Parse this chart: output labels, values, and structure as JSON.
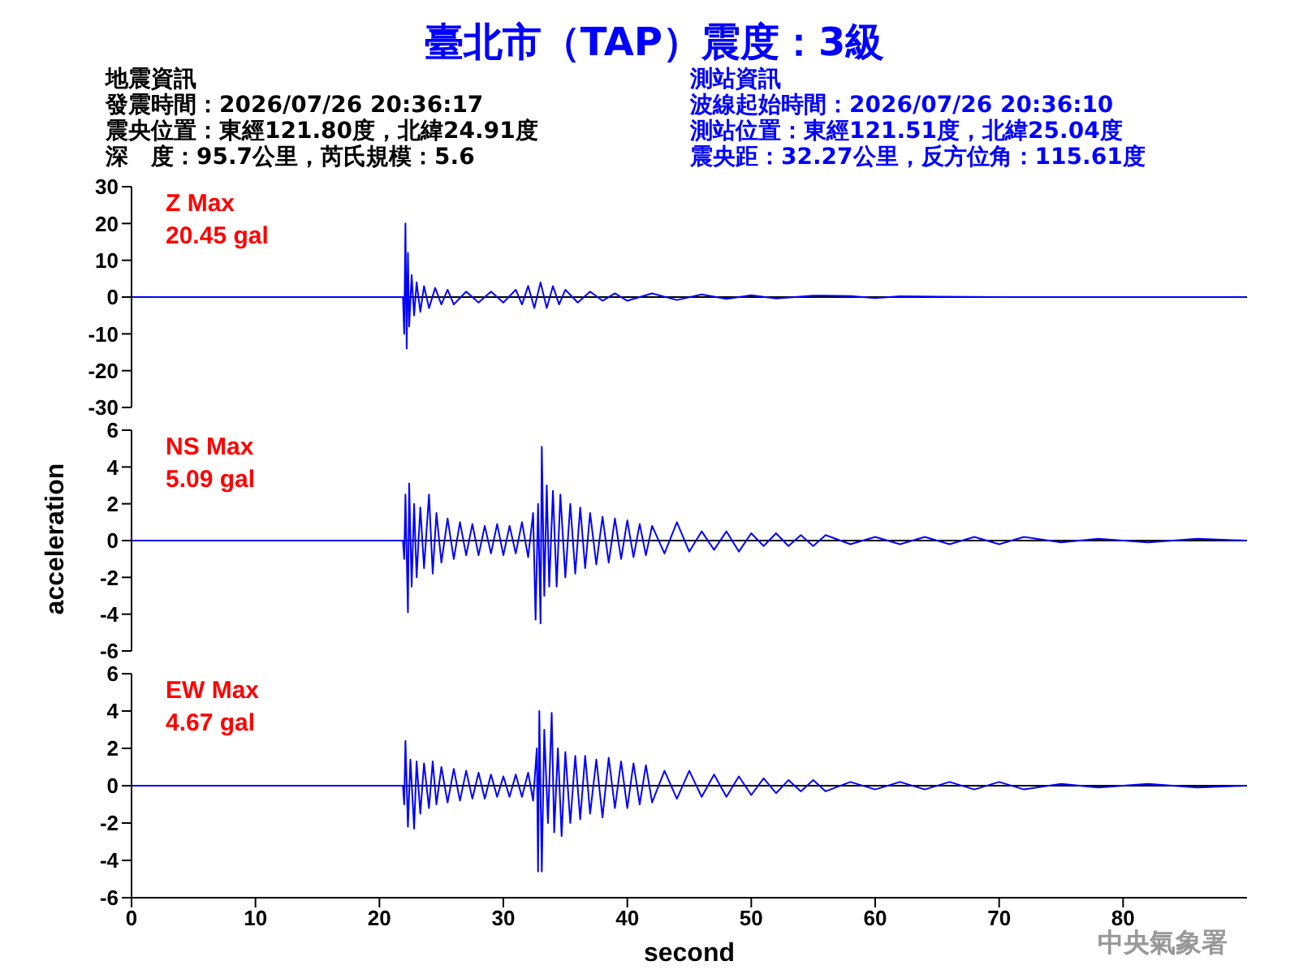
{
  "chart_data": [
    {
      "type": "line",
      "title": "臺北市（TAP）震度：3級",
      "xlim": [
        0,
        90
      ],
      "ylim": [
        -30,
        30
      ],
      "yticks": [
        -30,
        -20,
        -10,
        0,
        10,
        20,
        30
      ],
      "tick_labels": "y",
      "grid": false,
      "legend": false,
      "marker": "none",
      "ref_lines": [
        {
          "axis": "y",
          "value": 0,
          "color": "#000000"
        }
      ],
      "annotations": [
        "Z Max",
        "20.45 gal",
        "地震資訊",
        "發震時間：2026/07/26 20:36:17",
        "震央位置：東經121.80度，北緯24.91度",
        "深　度：95.7公里，芮氏規模：5.6",
        "測站資訊",
        "波線起始時間：2026/07/26 20:36:10",
        "測站位置：東經121.51度，北緯25.04度",
        "震央距：32.27公里，反方位角：115.61度"
      ],
      "series": [
        {
          "color": "#0000ff",
          "x": [
            0,
            21.9,
            22.0,
            22.1,
            22.2,
            22.3,
            22.4,
            22.6,
            22.8,
            23,
            23.3,
            23.6,
            24,
            24.5,
            25,
            25.5,
            26,
            27,
            28,
            29,
            30,
            31,
            31.5,
            32,
            32.5,
            33,
            33.5,
            34,
            34.5,
            35,
            36,
            37,
            38,
            39,
            40,
            42,
            44,
            46,
            48,
            50,
            52,
            55,
            58,
            60,
            62,
            65,
            70,
            89.9
          ],
          "values": [
            0,
            0,
            -10,
            20,
            -14,
            12,
            -8,
            6,
            -5,
            4,
            -4,
            3,
            -3,
            2.5,
            -2,
            2,
            -2,
            1.5,
            -1.5,
            1.5,
            -1.5,
            2,
            -2,
            3,
            -3,
            4,
            -3,
            3,
            -2,
            2,
            -1.5,
            1.5,
            -1,
            1,
            -1,
            1,
            -0.8,
            0.7,
            -0.5,
            0.5,
            -0.4,
            0.4,
            0.3,
            -0.3,
            0.2,
            0.1,
            0,
            0
          ]
        }
      ]
    },
    {
      "type": "line",
      "ylabel": "acceleration",
      "xlim": [
        0,
        90
      ],
      "ylim": [
        -6,
        6
      ],
      "yticks": [
        -6,
        -4,
        -2,
        0,
        2,
        4,
        6
      ],
      "tick_labels": "y",
      "grid": false,
      "legend": false,
      "marker": "none",
      "ref_lines": [
        {
          "axis": "y",
          "value": 0,
          "color": "#000000"
        }
      ],
      "annotations": [
        "NS Max",
        "5.09 gal"
      ],
      "series": [
        {
          "color": "#0000ff",
          "x": [
            0,
            21.9,
            22,
            22.1,
            22.3,
            22.4,
            22.6,
            22.8,
            23,
            23.3,
            23.6,
            24,
            24.3,
            24.6,
            25,
            25.5,
            26,
            26.5,
            27,
            27.5,
            28,
            28.5,
            29,
            29.5,
            30,
            30.5,
            31,
            31.5,
            32,
            32.4,
            32.6,
            32.8,
            33,
            33.1,
            33.3,
            33.5,
            33.7,
            34,
            34.3,
            34.6,
            35,
            35.4,
            35.8,
            36.2,
            36.6,
            37,
            37.5,
            38,
            38.5,
            39,
            39.5,
            40,
            40.5,
            41,
            41.5,
            42,
            43,
            44,
            45,
            46,
            47,
            48,
            49,
            50,
            51,
            52,
            53,
            54,
            55,
            56,
            58,
            60,
            62,
            64,
            66,
            68,
            70,
            72,
            75,
            78,
            82,
            86,
            89.9
          ],
          "values": [
            0,
            0,
            -1,
            2.5,
            -3.9,
            3.1,
            -2.5,
            2,
            -2,
            1.8,
            -1.5,
            2.5,
            -1.8,
            1.5,
            -1.2,
            1.2,
            -1,
            1,
            -0.8,
            0.9,
            -0.8,
            0.8,
            -0.7,
            0.9,
            -0.8,
            0.8,
            -0.7,
            1,
            -0.9,
            1.5,
            -4.3,
            2,
            -4.5,
            5.1,
            -3,
            3,
            -2.5,
            2.7,
            -2.5,
            2.5,
            -2,
            2,
            -1.8,
            1.8,
            -1.5,
            1.5,
            -1.3,
            1.3,
            -1.2,
            1.2,
            -1,
            1.1,
            -0.9,
            0.9,
            -0.8,
            0.8,
            -0.7,
            1,
            -0.6,
            0.5,
            -0.5,
            0.5,
            -0.6,
            0.4,
            -0.3,
            0.4,
            -0.3,
            0.3,
            -0.3,
            0.3,
            -0.2,
            0.2,
            -0.2,
            0.2,
            -0.2,
            0.2,
            -0.2,
            0.2,
            -0.1,
            0.1,
            -0.1,
            0.1,
            0
          ]
        }
      ]
    },
    {
      "type": "line",
      "xlabel": "second",
      "xlim": [
        0,
        90
      ],
      "xticks": [
        0,
        10,
        20,
        30,
        40,
        50,
        60,
        70,
        80
      ],
      "ylim": [
        -6,
        6
      ],
      "yticks": [
        -6,
        -4,
        -2,
        0,
        2,
        4,
        6
      ],
      "grid": false,
      "legend": false,
      "marker": "none",
      "ref_lines": [
        {
          "axis": "y",
          "value": 0,
          "color": "#000000"
        }
      ],
      "annotations": [
        "EW Max",
        "4.67 gal",
        "中央氣象署"
      ],
      "series": [
        {
          "color": "#0000ff",
          "x": [
            0,
            21.9,
            22,
            22.1,
            22.3,
            22.5,
            22.8,
            23,
            23.3,
            23.6,
            24,
            24.3,
            24.6,
            25,
            25.5,
            26,
            26.5,
            27,
            27.5,
            28,
            28.5,
            29,
            29.5,
            30,
            30.5,
            31,
            31.5,
            32,
            32.4,
            32.7,
            32.8,
            32.9,
            33.1,
            33.3,
            33.6,
            33.9,
            34.1,
            34.4,
            34.7,
            35,
            35.4,
            35.8,
            36.2,
            36.6,
            37,
            37.5,
            38,
            38.5,
            39,
            39.5,
            40,
            40.5,
            41,
            41.5,
            42,
            43,
            44,
            45,
            46,
            47,
            48,
            49,
            50,
            51,
            52,
            53,
            54,
            55,
            56,
            58,
            60,
            62,
            64,
            66,
            68,
            70,
            72,
            75,
            78,
            82,
            86,
            89.9
          ],
          "values": [
            0,
            0,
            -1,
            2.4,
            -2.2,
            1.4,
            -2.3,
            1.3,
            -1.5,
            1.2,
            -1.2,
            1.3,
            -1,
            1,
            -0.9,
            0.9,
            -0.8,
            0.8,
            -0.7,
            0.7,
            -0.7,
            0.6,
            -0.6,
            0.5,
            -0.6,
            0.6,
            -0.6,
            0.7,
            -0.8,
            2,
            -4.6,
            4,
            -4.6,
            3,
            -2,
            3.9,
            -2.5,
            2,
            -2.7,
            1.8,
            -2,
            1.6,
            -1.8,
            1.6,
            -1.5,
            1.4,
            -1.7,
            1.5,
            -1.2,
            1.3,
            -1.2,
            1.2,
            -1,
            1.1,
            -0.9,
            0.8,
            -0.7,
            0.8,
            -0.6,
            0.6,
            -0.6,
            0.5,
            -0.5,
            0.4,
            -0.4,
            0.3,
            -0.3,
            0.3,
            -0.3,
            0.2,
            -0.2,
            0.2,
            -0.2,
            0.2,
            -0.2,
            0.2,
            -0.2,
            0.1,
            -0.1,
            0.1,
            -0.1,
            0
          ]
        }
      ]
    }
  ]
}
